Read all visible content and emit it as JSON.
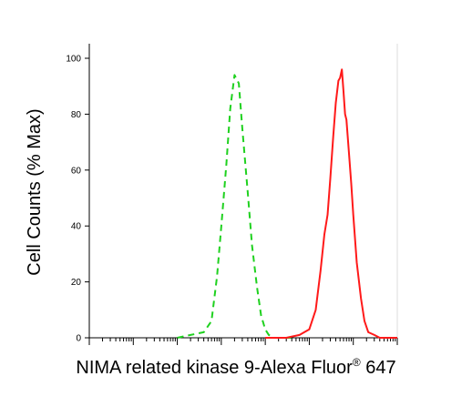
{
  "chart_data": {
    "type": "line",
    "xlabel_main": "NIMA related kinase 9-Alexa Fluor",
    "xlabel_sup": "®",
    "xlabel_tail": " 647",
    "ylabel": "Cell Counts (% Max)",
    "ylim": [
      0,
      100
    ],
    "yticks": [
      "0",
      "20",
      "40",
      "60",
      "80",
      "100"
    ],
    "xscale": "log",
    "xlim": [
      0.1,
      1000000
    ],
    "grid": false,
    "legend": "none",
    "series": [
      {
        "style": "dashed",
        "color": "#1fd11f",
        "x": [
          10,
          20,
          40,
          60,
          80,
          100,
          130,
          160,
          200,
          250,
          300,
          400,
          500,
          650,
          800,
          1000,
          1200,
          1600,
          2200,
          3000,
          4000
        ],
        "y": [
          0,
          1,
          2,
          6,
          22,
          40,
          62,
          82,
          94,
          91,
          75,
          52,
          33,
          18,
          8,
          3,
          1,
          0,
          0,
          0,
          0
        ]
      },
      {
        "style": "solid",
        "color": "#ff1a1a",
        "x": [
          1000,
          3000,
          6000,
          10000,
          14000,
          18000,
          22000,
          26000,
          30000,
          35000,
          40000,
          46000,
          50000,
          55000,
          60000,
          65000,
          70000,
          80000,
          90000,
          100000,
          120000,
          150000,
          180000,
          220000,
          300000,
          400000,
          600000,
          1000000
        ],
        "y": [
          0,
          0,
          1,
          3,
          10,
          24,
          37,
          44,
          57,
          72,
          84,
          92,
          93,
          96,
          88,
          80,
          78,
          66,
          55,
          44,
          27,
          14,
          6,
          2,
          1,
          0,
          0,
          0
        ]
      }
    ]
  }
}
